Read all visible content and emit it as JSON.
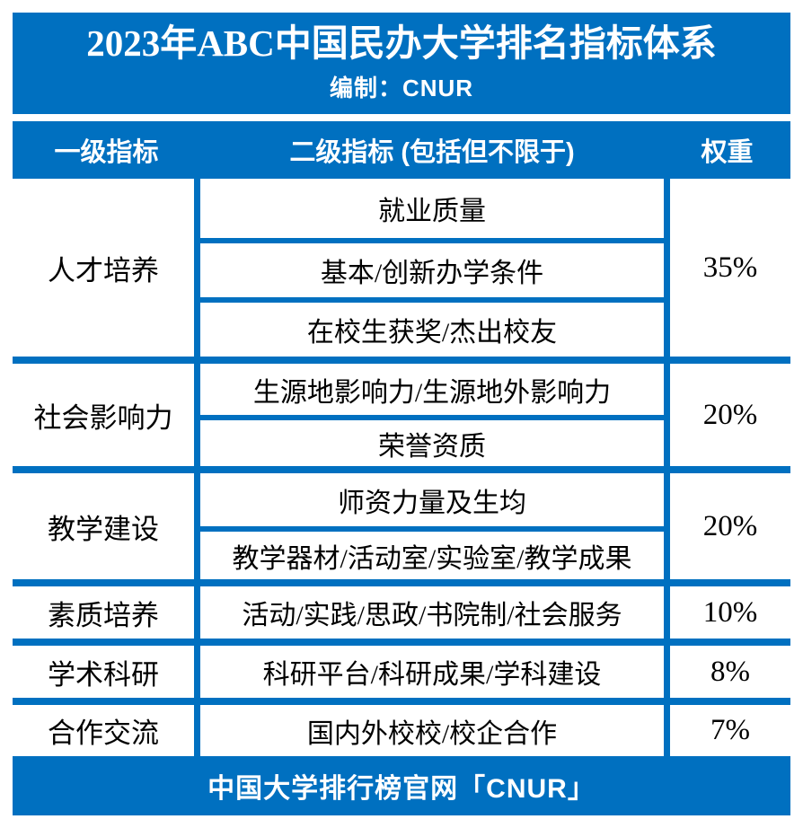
{
  "colors": {
    "brand_blue": "#0070C0",
    "body_text": "#000000",
    "band_text": "#ffffff",
    "background": "#ffffff"
  },
  "title_band": {
    "title": "2023年ABC中国民办大学排名指标体系",
    "subtitle": "编制：CNUR"
  },
  "header": {
    "col_primary": "一级指标",
    "col_secondary": "二级指标 (包括但不限于)",
    "col_weight": "权重"
  },
  "table": {
    "groups": [
      {
        "primary": "人才培养",
        "secondary": [
          "就业质量",
          "基本/创新办学条件",
          "在校生获奖/杰出校友"
        ],
        "weight": "35%"
      },
      {
        "primary": "社会影响力",
        "secondary": [
          "生源地影响力/生源地外影响力",
          "荣誉资质"
        ],
        "weight": "20%"
      },
      {
        "primary": "教学建设",
        "secondary": [
          "师资力量及生均",
          "教学器材/活动室/实验室/教学成果"
        ],
        "weight": "20%"
      },
      {
        "primary": "素质培养",
        "secondary": [
          "活动/实践/思政/书院制/社会服务"
        ],
        "weight": "10%"
      },
      {
        "primary": "学术科研",
        "secondary": [
          "科研平台/科研成果/学科建设"
        ],
        "weight": "8%"
      },
      {
        "primary": "合作交流",
        "secondary": [
          "国内外校校/校企合作"
        ],
        "weight": "7%"
      }
    ]
  },
  "footer": {
    "text": "中国大学排行榜官网「CNUR」"
  },
  "chart_data": {
    "type": "table",
    "title": "2023年ABC中国民办大学排名指标体系",
    "subtitle": "编制：CNUR",
    "columns": [
      "一级指标",
      "二级指标 (包括但不限于)",
      "权重"
    ],
    "rows": [
      [
        "人才培养",
        "就业质量",
        "35%"
      ],
      [
        "人才培养",
        "基本/创新办学条件",
        "35%"
      ],
      [
        "人才培养",
        "在校生获奖/杰出校友",
        "35%"
      ],
      [
        "社会影响力",
        "生源地影响力/生源地外影响力",
        "20%"
      ],
      [
        "社会影响力",
        "荣誉资质",
        "20%"
      ],
      [
        "教学建设",
        "师资力量及生均",
        "20%"
      ],
      [
        "教学建设",
        "教学器材/活动室/实验室/教学成果",
        "20%"
      ],
      [
        "素质培养",
        "活动/实践/思政/书院制/社会服务",
        "10%"
      ],
      [
        "学术科研",
        "科研平台/科研成果/学科建设",
        "8%"
      ],
      [
        "合作交流",
        "国内外校校/校企合作",
        "7%"
      ]
    ],
    "weights_percent": {
      "人才培养": 35,
      "社会影响力": 20,
      "教学建设": 20,
      "素质培养": 10,
      "学术科研": 8,
      "合作交流": 7
    },
    "footer": "中国大学排行榜官网「CNUR」"
  }
}
